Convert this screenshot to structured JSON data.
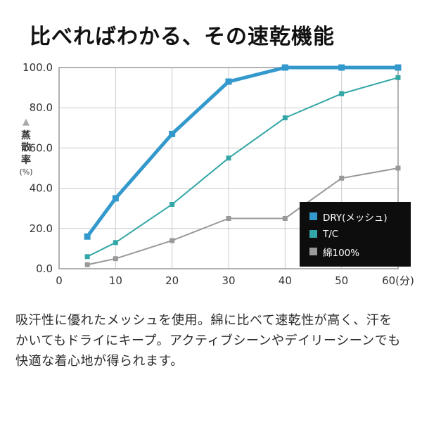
{
  "page": {
    "title": "比べればわかる、その速乾機能",
    "description": "吸汗性に優れたメッシュを使用。綿に比べて速乾性が高く、汗をかいてもドライにキープ。アクティブシーンやデイリーシーンでも快適な着心地が得られます。"
  },
  "chart_data": {
    "type": "line",
    "title": "比べればわかる、その速乾機能",
    "xlabel": "(分)",
    "ylabel": "蒸散率(%)",
    "ylabel_chars": [
      "蒸",
      "散",
      "率"
    ],
    "ylabel_unit": "(%)",
    "ylabel_marker": "▲",
    "x": [
      5,
      10,
      20,
      30,
      40,
      50,
      60
    ],
    "xlim": [
      0,
      60
    ],
    "ylim": [
      0,
      100
    ],
    "xticks": [
      {
        "value": 0,
        "label": "0"
      },
      {
        "value": 10,
        "label": "10"
      },
      {
        "value": 20,
        "label": "20"
      },
      {
        "value": 30,
        "label": "30"
      },
      {
        "value": 40,
        "label": "40"
      },
      {
        "value": 50,
        "label": "50"
      },
      {
        "value": 60,
        "label": "60(分)"
      }
    ],
    "yticks": [
      {
        "value": 0,
        "label": "0.0"
      },
      {
        "value": 20,
        "label": "20.0"
      },
      {
        "value": 40,
        "label": "40.0"
      },
      {
        "value": 60,
        "label": "60.0"
      },
      {
        "value": 80,
        "label": "80.0"
      },
      {
        "value": 100,
        "label": "100.0"
      }
    ],
    "series": [
      {
        "id": "dry-mesh",
        "name": "DRY(メッシュ)",
        "color": "#3399cc",
        "line_width": 5,
        "marker_size": 9,
        "values": [
          16,
          35,
          67,
          93,
          100,
          100,
          100
        ]
      },
      {
        "id": "tc",
        "name": "T/C",
        "color": "#33a6a6",
        "line_width": 2,
        "marker_size": 7,
        "values": [
          6,
          13,
          32,
          55,
          75,
          87,
          95
        ]
      },
      {
        "id": "cotton-100",
        "name": "綿100%",
        "color": "#999999",
        "line_width": 2,
        "marker_size": 7,
        "values": [
          2,
          5,
          14,
          25,
          25,
          45,
          50
        ]
      }
    ],
    "grid": true,
    "legend_position": "bottom-right",
    "style": {
      "grid_color": "#cccccc",
      "frame_color": "#999999",
      "tick_color": "#333333",
      "legend_bg": "#0d0d0d",
      "legend_text": "#ffffff",
      "triangle_color": "#a9a9a9"
    }
  }
}
